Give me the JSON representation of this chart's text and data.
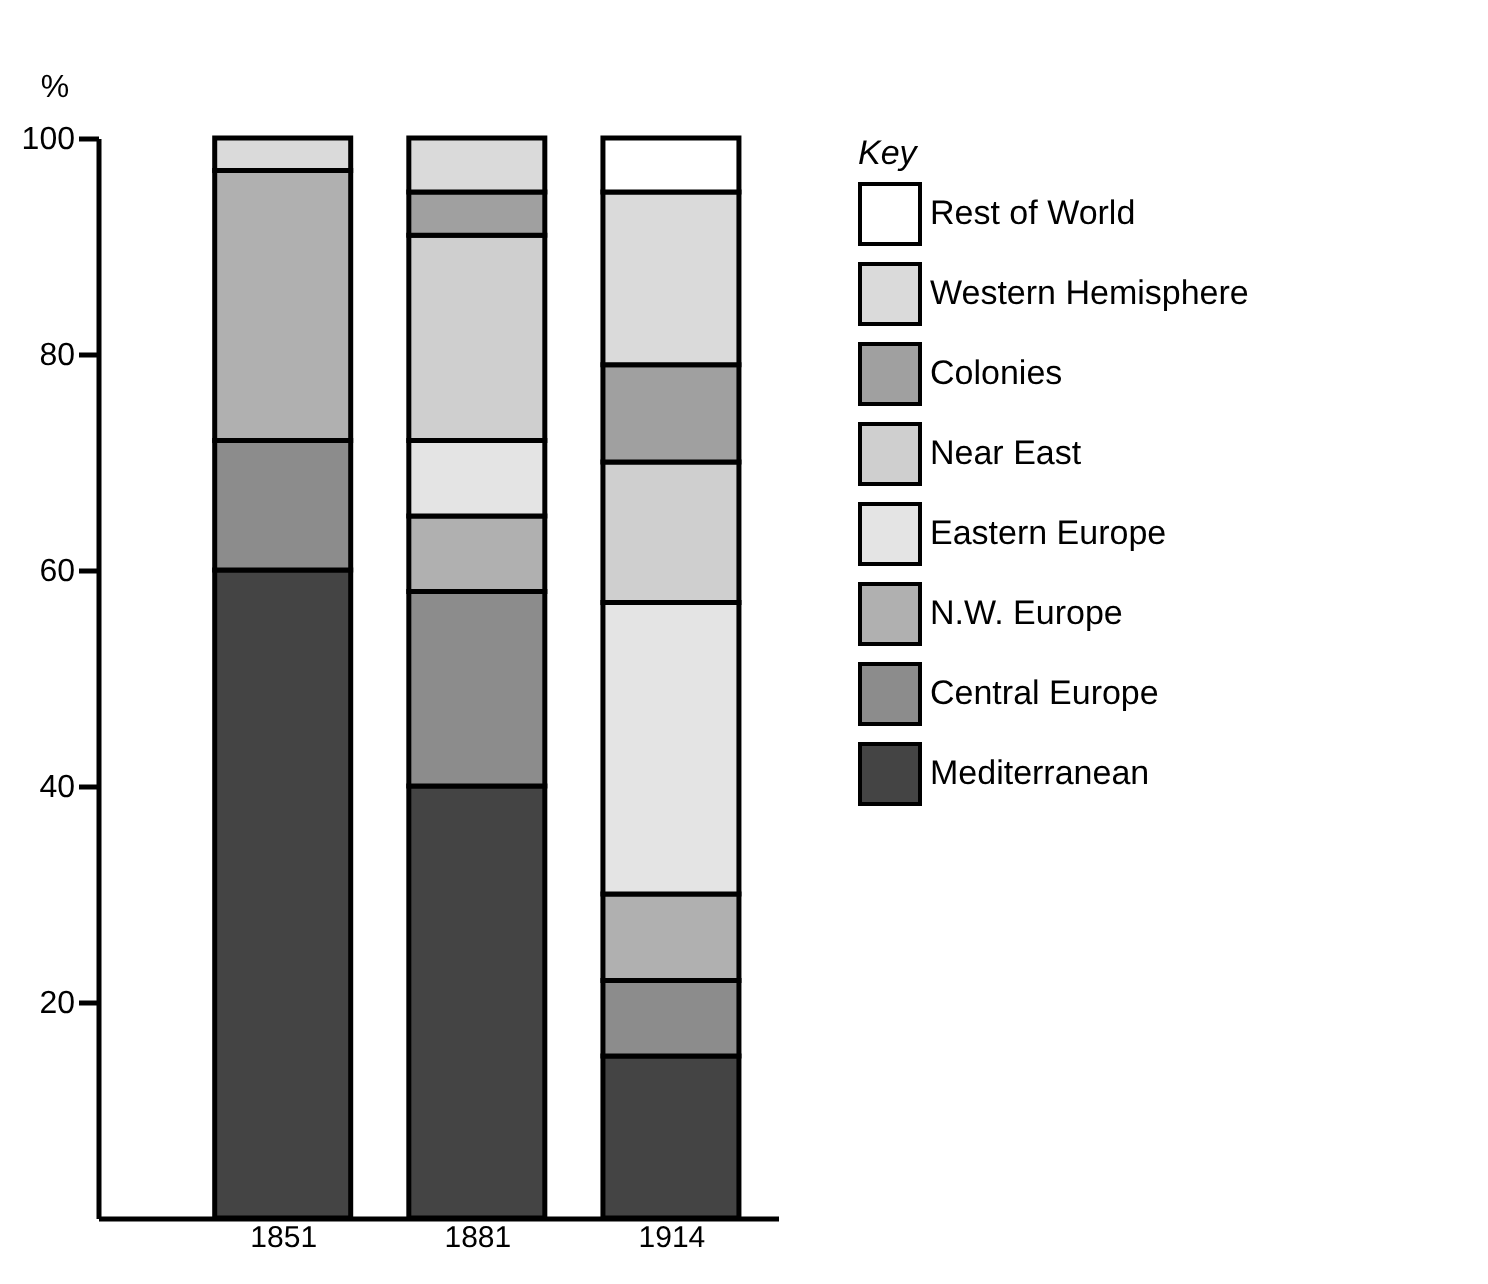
{
  "chart_data": {
    "type": "bar",
    "stacked": true,
    "ylabel": "%",
    "legend_title": "Key",
    "categories": [
      "1851",
      "1881",
      "1914"
    ],
    "ylim": [
      0,
      100
    ],
    "yticks": [
      20,
      40,
      60,
      80,
      100
    ],
    "grid": false,
    "legend": "right",
    "series": [
      {
        "name": "Mediterranean",
        "color": "#444444",
        "values": [
          60,
          40,
          15
        ]
      },
      {
        "name": "Central Europe",
        "color": "#8c8c8c",
        "values": [
          12,
          18,
          7
        ]
      },
      {
        "name": "N.W. Europe",
        "color": "#b0b0b0",
        "values": [
          25,
          7,
          8
        ]
      },
      {
        "name": "Eastern Europe",
        "color": "#e4e4e4",
        "values": [
          null,
          7,
          27
        ]
      },
      {
        "name": "Near East",
        "color": "#cfcfcf",
        "values": [
          null,
          19,
          13
        ]
      },
      {
        "name": "Colonies",
        "color": "#a0a0a0",
        "values": [
          null,
          4,
          9
        ]
      },
      {
        "name": "Western Hemisphere",
        "color": "#dadada",
        "values": [
          3,
          5,
          16
        ]
      },
      {
        "name": "Rest of World",
        "color": "#ffffff",
        "values": [
          null,
          null,
          5
        ]
      }
    ]
  }
}
